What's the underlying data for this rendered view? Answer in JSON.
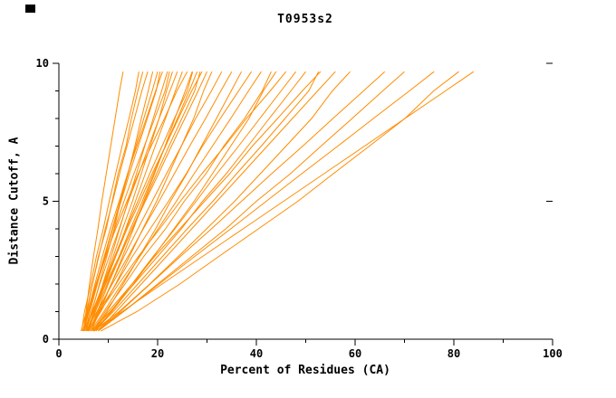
{
  "chart_data": {
    "type": "line",
    "title": "T0953s2",
    "xlabel": "Percent of Residues (CA)",
    "ylabel": "Distance Cutoff, A",
    "xlim": [
      0,
      100
    ],
    "ylim": [
      0,
      10
    ],
    "x_major_ticks": [
      0,
      20,
      40,
      60,
      80,
      100
    ],
    "x_minor_ticks": [
      10,
      30,
      50,
      70,
      90
    ],
    "y_major_ticks": [
      0,
      5,
      10
    ],
    "y_minor_ticks": [
      1,
      2,
      3,
      4,
      6,
      7,
      8,
      9
    ],
    "grid": false,
    "legend": "none",
    "series_color": "#ff8c00",
    "axis_color": "#000000",
    "y_samples": [
      0.3,
      1,
      2,
      3,
      4,
      5,
      6,
      7,
      8,
      9,
      9.7
    ],
    "series": [
      {
        "x": [
          5.0,
          5.5,
          6.2,
          7.0,
          7.9,
          8.7,
          9.6,
          10.5,
          11.4,
          12.3,
          13.0
        ]
      },
      {
        "x": [
          4.5,
          5.6,
          6.8,
          8.0,
          9.6,
          10.8,
          12.0,
          13.6,
          14.7,
          16.0,
          17.0
        ]
      },
      {
        "x": [
          5.0,
          5.7,
          6.8,
          8.1,
          9.4,
          10.9,
          12.3,
          13.8,
          15.3,
          16.8,
          18.0
        ]
      },
      {
        "x": [
          5.5,
          6.7,
          8.2,
          9.7,
          11.2,
          12.5,
          14.0,
          15.4,
          16.7,
          18.1,
          19.0
        ]
      },
      {
        "x": [
          4.8,
          5.9,
          7.6,
          9.2,
          10.8,
          12.4,
          14.0,
          15.6,
          17.2,
          18.9,
          20.0
        ]
      },
      {
        "x": [
          5.2,
          5.9,
          7.3,
          8.8,
          10.4,
          12.2,
          13.9,
          15.8,
          17.7,
          19.6,
          21.0
        ]
      },
      {
        "x": [
          6.0,
          7.2,
          8.9,
          10.6,
          12.3,
          14.0,
          15.7,
          17.4,
          19.1,
          20.8,
          22.0
        ]
      },
      {
        "x": [
          5.0,
          6.8,
          9.0,
          11.0,
          12.9,
          14.9,
          16.7,
          18.5,
          20.3,
          21.8,
          23.0
        ]
      },
      {
        "x": [
          5.5,
          6.6,
          8.3,
          10.2,
          12.2,
          14.1,
          16.2,
          18.2,
          20.3,
          22.5,
          24.0
        ]
      },
      {
        "x": [
          6.0,
          7.4,
          9.4,
          11.5,
          13.5,
          15.5,
          17.5,
          19.5,
          21.6,
          23.6,
          25.0
        ]
      },
      {
        "x": [
          5.0,
          5.8,
          7.5,
          9.4,
          11.5,
          13.8,
          16.1,
          18.7,
          21.4,
          23.9,
          26.0
        ]
      },
      {
        "x": [
          6.5,
          8.3,
          10.6,
          12.9,
          15.1,
          17.2,
          19.4,
          21.5,
          23.5,
          25.6,
          27.0
        ]
      },
      {
        "x": [
          5.8,
          7.4,
          9.8,
          12.2,
          14.5,
          16.9,
          19.2,
          21.6,
          24.0,
          26.4,
          28.0
        ]
      },
      {
        "x": [
          6.0,
          7.2,
          9.2,
          11.5,
          13.8,
          16.4,
          18.9,
          21.6,
          24.2,
          26.9,
          29.0
        ]
      },
      {
        "x": [
          5.0,
          6.9,
          9.5,
          12.2,
          14.9,
          17.5,
          20.2,
          22.8,
          25.5,
          28.2,
          30.0
        ]
      },
      {
        "x": [
          6.0,
          8.5,
          11.5,
          14.3,
          17.0,
          19.8,
          22.3,
          24.8,
          27.3,
          29.3,
          31.0
        ]
      },
      {
        "x": [
          6.5,
          8.0,
          10.6,
          13.2,
          16.0,
          18.9,
          21.8,
          24.8,
          27.7,
          30.9,
          33.0
        ]
      },
      {
        "x": [
          5.5,
          7.7,
          10.8,
          14.0,
          17.1,
          20.3,
          23.4,
          26.5,
          29.7,
          32.8,
          35.0
        ]
      },
      {
        "x": [
          7.0,
          9.7,
          13.0,
          16.3,
          19.6,
          22.6,
          25.9,
          28.9,
          31.9,
          34.9,
          37.0
        ]
      },
      {
        "x": [
          6.0,
          8.1,
          11.6,
          14.9,
          18.5,
          22.2,
          25.8,
          29.1,
          32.7,
          36.4,
          39.0
        ]
      },
      {
        "x": [
          6.5,
          9.1,
          12.7,
          16.4,
          20.1,
          23.8,
          27.4,
          31.1,
          34.8,
          38.4,
          41.0
        ]
      },
      {
        "x": [
          7.0,
          10.7,
          15.1,
          19.2,
          23.3,
          27.4,
          31.1,
          34.8,
          38.5,
          41.4,
          44.0
        ]
      },
      {
        "x": [
          6.0,
          8.3,
          12.1,
          16.1,
          20.4,
          24.6,
          29.0,
          33.6,
          38.0,
          42.8,
          46.0
        ]
      },
      {
        "x": [
          7.5,
          10.5,
          14.8,
          19.1,
          23.5,
          27.8,
          32.0,
          36.4,
          40.7,
          45.0,
          48.0
        ]
      },
      {
        "x": [
          6.5,
          10.4,
          15.2,
          20.0,
          24.8,
          29.1,
          33.9,
          38.3,
          42.6,
          47.0,
          50.0
        ]
      },
      {
        "x": [
          7.0,
          10.0,
          14.8,
          19.4,
          24.5,
          29.5,
          34.6,
          39.2,
          44.3,
          49.3,
          53.0
        ]
      },
      {
        "x": [
          8.0,
          11.6,
          16.7,
          21.8,
          26.9,
          32.0,
          37.1,
          42.2,
          47.3,
          52.4,
          56.0
        ]
      },
      {
        "x": [
          7.0,
          12.2,
          18.4,
          24.2,
          29.9,
          35.6,
          40.8,
          46.0,
          51.2,
          55.4,
          59.0
        ]
      },
      {
        "x": [
          8.0,
          12.4,
          18.5,
          24.6,
          30.9,
          37.0,
          43.1,
          49.4,
          55.5,
          61.7,
          66.0
        ]
      },
      {
        "x": [
          7.5,
          13.1,
          20.0,
          26.9,
          33.8,
          40.0,
          46.9,
          53.1,
          59.4,
          65.6,
          70.0
        ]
      },
      {
        "x": [
          8.0,
          13.1,
          20.3,
          27.5,
          34.8,
          42.0,
          49.2,
          56.5,
          63.7,
          71.0,
          76.0
        ]
      },
      {
        "x": [
          8.5,
          15.8,
          24.5,
          32.4,
          40.4,
          48.4,
          55.6,
          62.9,
          70.1,
          75.9,
          81.0
        ]
      },
      {
        "x": [
          7.0,
          12.8,
          20.9,
          29.1,
          37.3,
          45.5,
          53.7,
          61.9,
          70.1,
          78.3,
          84.0
        ]
      },
      {
        "x": [
          4.6,
          5.2,
          6.5,
          7.6,
          9.0,
          10.2,
          11.5,
          12.8,
          14.2,
          15.5,
          16.2
        ]
      },
      {
        "x": [
          5.4,
          6.3,
          7.8,
          9.3,
          10.9,
          12.6,
          14.3,
          16.1,
          17.9,
          19.7,
          20.5
        ]
      },
      {
        "x": [
          5.1,
          6.1,
          7.7,
          9.5,
          11.3,
          13.2,
          15.2,
          17.3,
          19.4,
          21.5,
          22.4
        ]
      },
      {
        "x": [
          6.2,
          7.8,
          10.0,
          12.4,
          14.8,
          17.3,
          19.8,
          22.3,
          24.9,
          27.5,
          28.6
        ]
      },
      {
        "x": [
          5.7,
          7.0,
          9.1,
          11.3,
          13.6,
          16.0,
          18.4,
          20.9,
          23.4,
          26.0,
          27.1
        ]
      },
      {
        "x": [
          6.8,
          9.4,
          13.4,
          17.2,
          21.6,
          25.4,
          29.8,
          33.4,
          37.6,
          41.2,
          43.0
        ]
      },
      {
        "x": [
          7.2,
          11.0,
          16.0,
          21.0,
          26.0,
          31.2,
          36.0,
          41.0,
          45.8,
          50.6,
          52.6
        ]
      }
    ]
  }
}
